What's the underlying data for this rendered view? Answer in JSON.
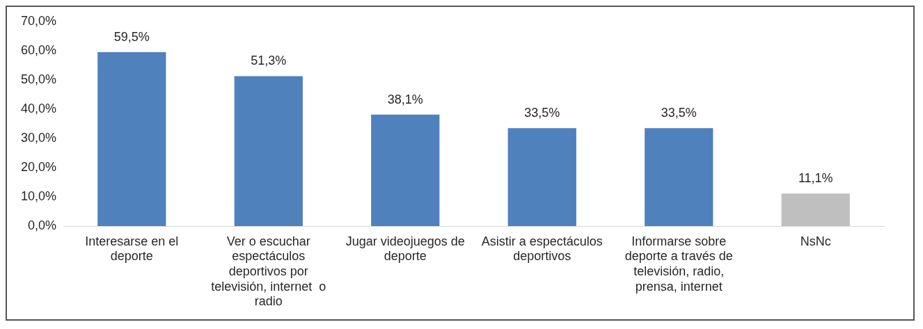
{
  "chart_data": {
    "type": "bar",
    "categories": [
      "Interesarse en el deporte",
      "Ver o escuchar espectáculos deportivos por televisión, internet  o radio",
      "Jugar videojuegos de deporte",
      "Asistir a espectáculos deportivos",
      "Informarse sobre deporte a través de televisión, radio, prensa, internet",
      "NsNc"
    ],
    "values": [
      59.5,
      51.3,
      38.1,
      33.5,
      33.5,
      11.1
    ],
    "colors": [
      "#4f81bd",
      "#4f81bd",
      "#4f81bd",
      "#4f81bd",
      "#4f81bd",
      "#bfbfbf"
    ],
    "value_labels": [
      "59,5%",
      "51,3%",
      "38,1%",
      "33,5%",
      "33,5%",
      "11,1%"
    ],
    "ylim": [
      0,
      70
    ],
    "yticks": [
      {
        "value": 0,
        "label": "0,0%"
      },
      {
        "value": 10,
        "label": "10,0%"
      },
      {
        "value": 20,
        "label": "20,0%"
      },
      {
        "value": 30,
        "label": "30,0%"
      },
      {
        "value": 40,
        "label": "40,0%"
      },
      {
        "value": 50,
        "label": "50,0%"
      },
      {
        "value": 60,
        "label": "60,0%"
      },
      {
        "value": 70,
        "label": "70,0%"
      }
    ],
    "grid": false,
    "legend": false
  }
}
